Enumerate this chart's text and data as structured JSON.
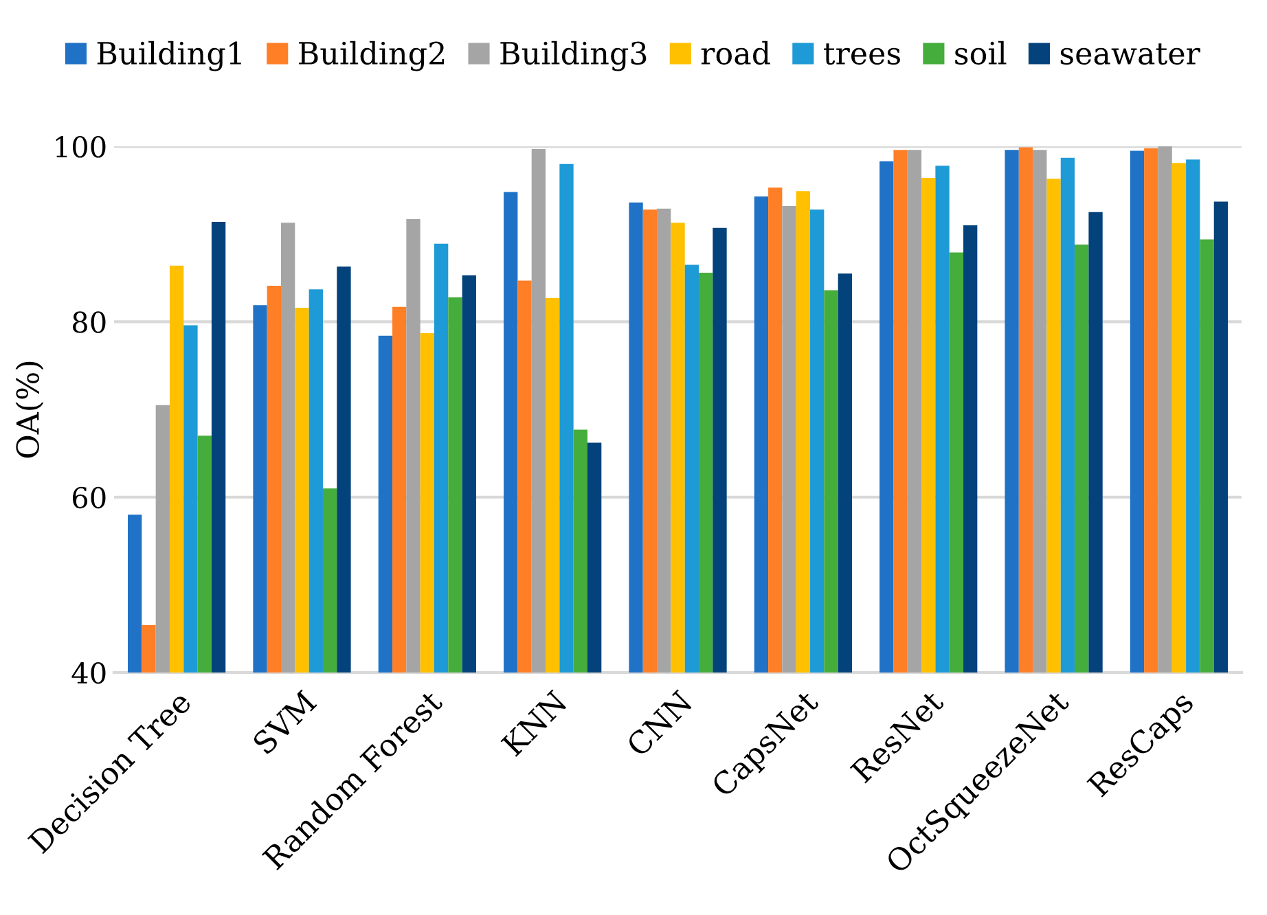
{
  "chart_data": {
    "type": "bar",
    "ylabel": "OA(%)",
    "categories": [
      "Decision Tree",
      "SVM",
      "Random Forest",
      "KNN",
      "CNN",
      "CapsNet",
      "ResNet",
      "OctSqueezeNet",
      "ResCaps"
    ],
    "series": [
      {
        "name": "Building1",
        "color": "#1f72c6",
        "values": [
          58.0,
          81.9,
          78.4,
          94.8,
          93.6,
          94.3,
          98.3,
          99.6,
          99.5
        ]
      },
      {
        "name": "Building2",
        "color": "#ff7f27",
        "values": [
          45.4,
          84.1,
          81.7,
          84.7,
          92.8,
          95.3,
          99.6,
          99.9,
          99.8
        ]
      },
      {
        "name": "Building3",
        "color": "#a5a5a5",
        "values": [
          70.5,
          91.3,
          91.7,
          99.7,
          92.9,
          93.2,
          99.6,
          99.6,
          100.0
        ]
      },
      {
        "name": "road",
        "color": "#ffc000",
        "values": [
          86.4,
          81.6,
          78.7,
          82.7,
          91.3,
          94.9,
          96.4,
          96.3,
          98.1
        ]
      },
      {
        "name": "trees",
        "color": "#1e9ad6",
        "values": [
          79.6,
          83.7,
          88.9,
          98.0,
          86.5,
          92.8,
          97.8,
          98.7,
          98.5
        ]
      },
      {
        "name": "soil",
        "color": "#45ad3b",
        "values": [
          67.0,
          61.0,
          82.8,
          67.7,
          85.6,
          83.6,
          87.9,
          88.8,
          89.4
        ]
      },
      {
        "name": "seawater",
        "color": "#03427a",
        "values": [
          91.4,
          86.3,
          85.3,
          66.2,
          90.7,
          85.5,
          91.0,
          92.5,
          93.7
        ]
      }
    ],
    "ylim": [
      40,
      100
    ],
    "yticks": [
      40,
      60,
      80,
      100
    ],
    "grid": "y",
    "legend": "top"
  }
}
